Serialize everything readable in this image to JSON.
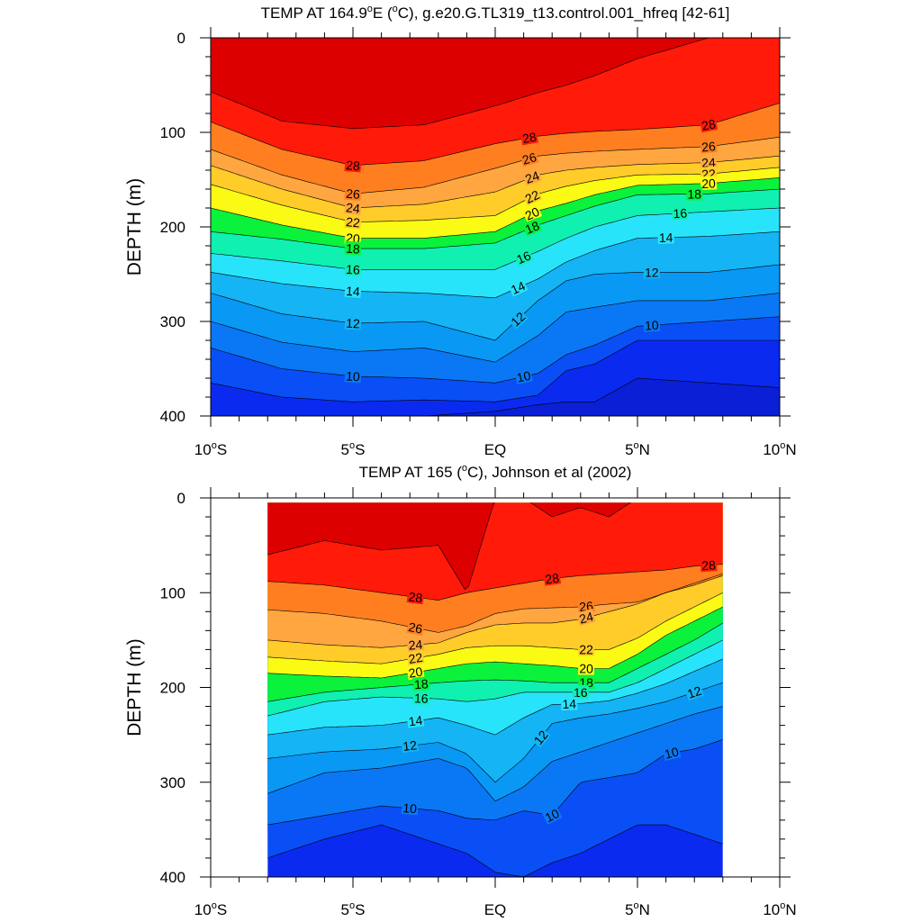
{
  "chart_data": [
    {
      "type": "contour",
      "title": "TEMP AT 164.9°E (°C), g.e20.G.TL319_t13.control.001_hfreq [42-61]",
      "title_parts": {
        "pre": "TEMP AT 164.9",
        "sup1": "o",
        "mid": "E (",
        "sup2": "o",
        "post": "C), g.e20.G.TL319_t13.control.001_hfreq [42-61]"
      },
      "ylabel": "DEPTH (m)",
      "xlim": [
        -10,
        10
      ],
      "ylim": [
        400,
        0
      ],
      "x_ticks": [
        -10,
        -5,
        0,
        5,
        10
      ],
      "x_tick_labels": [
        {
          "num": "10",
          "sup": "o",
          "suf": "S"
        },
        {
          "num": "5",
          "sup": "o",
          "suf": "S"
        },
        {
          "num": "EQ",
          "sup": "",
          "suf": ""
        },
        {
          "num": "5",
          "sup": "o",
          "suf": "N"
        },
        {
          "num": "10",
          "sup": "o",
          "suf": "N"
        }
      ],
      "y_ticks": [
        0,
        100,
        200,
        300,
        400
      ],
      "contour_interval": 1,
      "data_extent": {
        "x": [
          -10,
          10
        ],
        "y": [
          0,
          400
        ]
      },
      "x": [
        -10,
        -7.5,
        -5,
        -2.5,
        0,
        1.5,
        2.5,
        3.5,
        5,
        7.5,
        10
      ],
      "isotherms": [
        {
          "t": 29,
          "depth": [
            57,
            88,
            96,
            92,
            72,
            58,
            50,
            40,
            22,
            0,
            0
          ]
        },
        {
          "t": 28,
          "depth": [
            89,
            118,
            135,
            130,
            112,
            104,
            101,
            99,
            97,
            92,
            69
          ]
        },
        {
          "t": 26,
          "depth": [
            118,
            145,
            165,
            158,
            138,
            125,
            122,
            120,
            118,
            115,
            105
          ]
        },
        {
          "t": 24,
          "depth": [
            135,
            160,
            180,
            176,
            163,
            145,
            140,
            137,
            134,
            132,
            125
          ]
        },
        {
          "t": 22,
          "depth": [
            155,
            177,
            195,
            193,
            188,
            165,
            157,
            151,
            145,
            144,
            137
          ]
        },
        {
          "t": 20,
          "depth": [
            180,
            198,
            212,
            212,
            205,
            183,
            175,
            166,
            156,
            154,
            148
          ]
        },
        {
          "t": 18,
          "depth": [
            205,
            213,
            223,
            223,
            217,
            198,
            188,
            178,
            166,
            165,
            160
          ]
        },
        {
          "t": 16,
          "depth": [
            228,
            236,
            245,
            245,
            245,
            226,
            212,
            200,
            188,
            184,
            180
          ]
        },
        {
          "t": 14,
          "depth": [
            248,
            260,
            268,
            270,
            275,
            255,
            237,
            225,
            212,
            210,
            205
          ]
        },
        {
          "t": 12,
          "depth": [
            270,
            292,
            302,
            300,
            320,
            278,
            257,
            250,
            248,
            248,
            240
          ]
        },
        {
          "t": 11,
          "depth": [
            300,
            322,
            332,
            328,
            343,
            315,
            290,
            285,
            278,
            278,
            270
          ]
        },
        {
          "t": 10,
          "depth": [
            328,
            350,
            358,
            360,
            365,
            355,
            335,
            325,
            305,
            300,
            295
          ]
        },
        {
          "t": 9,
          "depth": [
            365,
            380,
            385,
            383,
            385,
            378,
            352,
            345,
            320,
            320,
            320
          ]
        },
        {
          "t": 8,
          "depth": [
            400,
            400,
            400,
            400,
            395,
            388,
            385,
            385,
            360,
            365,
            370
          ]
        }
      ],
      "labels": [
        {
          "t": 28,
          "x": [
            -5,
            1.2,
            7.5
          ]
        },
        {
          "t": 26,
          "x": [
            -5,
            1.2,
            7.5
          ]
        },
        {
          "t": 24,
          "x": [
            -5,
            1.3,
            7.5
          ]
        },
        {
          "t": 22,
          "x": [
            -5,
            1.3,
            7.5
          ]
        },
        {
          "t": 20,
          "x": [
            -5,
            1.3,
            7.5
          ]
        },
        {
          "t": 18,
          "x": [
            -5,
            1.3,
            7.0
          ]
        },
        {
          "t": 16,
          "x": [
            -5,
            1.0,
            6.5
          ]
        },
        {
          "t": 14,
          "x": [
            -5,
            0.8,
            6.0
          ]
        },
        {
          "t": 12,
          "x": [
            -5,
            0.8,
            5.5
          ]
        },
        {
          "t": 10,
          "x": [
            -5,
            1.0,
            5.5
          ]
        }
      ]
    },
    {
      "type": "contour",
      "title": "TEMP AT 165 (°C), Johnson et al (2002)",
      "title_parts": {
        "pre": "TEMP AT 165 (",
        "sup1": "o",
        "mid": "",
        "sup2": "",
        "post": "C), Johnson et al (2002)"
      },
      "ylabel": "DEPTH (m)",
      "xlim": [
        -10,
        10
      ],
      "ylim": [
        400,
        0
      ],
      "x_ticks": [
        -10,
        -5,
        0,
        5,
        10
      ],
      "x_tick_labels": [
        {
          "num": "10",
          "sup": "o",
          "suf": "S"
        },
        {
          "num": "5",
          "sup": "o",
          "suf": "S"
        },
        {
          "num": "EQ",
          "sup": "",
          "suf": ""
        },
        {
          "num": "5",
          "sup": "o",
          "suf": "N"
        },
        {
          "num": "10",
          "sup": "o",
          "suf": "N"
        }
      ],
      "y_ticks": [
        0,
        100,
        200,
        300,
        400
      ],
      "contour_interval": 1,
      "data_extent": {
        "x": [
          -8,
          8
        ],
        "y": [
          5,
          400
        ]
      },
      "x": [
        -8,
        -6,
        -4,
        -2,
        -1,
        0,
        1,
        2,
        3,
        4,
        5,
        6,
        7,
        8
      ],
      "isotherms": [
        {
          "t": 29,
          "depth": [
            60,
            45,
            55,
            50,
            100,
            0,
            0,
            20,
            10,
            20,
            0,
            0,
            0,
            0
          ]
        },
        {
          "t": 28,
          "depth": [
            88,
            92,
            100,
            108,
            100,
            95,
            90,
            85,
            82,
            80,
            78,
            76,
            72,
            70
          ]
        },
        {
          "t": 26,
          "depth": [
            118,
            122,
            130,
            142,
            135,
            122,
            117,
            116,
            115,
            112,
            110,
            100,
            92,
            82
          ]
        },
        {
          "t": 24,
          "depth": [
            150,
            155,
            158,
            153,
            142,
            134,
            132,
            132,
            128,
            120,
            112,
            100,
            90,
            80
          ]
        },
        {
          "t": 22,
          "depth": [
            168,
            172,
            175,
            165,
            158,
            156,
            156,
            158,
            160,
            160,
            148,
            130,
            115,
            100
          ]
        },
        {
          "t": 20,
          "depth": [
            185,
            188,
            190,
            180,
            175,
            173,
            175,
            177,
            180,
            180,
            165,
            145,
            130,
            115
          ]
        },
        {
          "t": 18,
          "depth": [
            215,
            205,
            200,
            195,
            193,
            192,
            193,
            195,
            195,
            195,
            180,
            165,
            150,
            132
          ]
        },
        {
          "t": 16,
          "depth": [
            230,
            215,
            210,
            212,
            215,
            212,
            205,
            205,
            205,
            205,
            195,
            180,
            165,
            150
          ]
        },
        {
          "t": 14,
          "depth": [
            250,
            242,
            240,
            232,
            240,
            250,
            232,
            218,
            217,
            214,
            206,
            196,
            183,
            170
          ]
        },
        {
          "t": 12,
          "depth": [
            275,
            268,
            265,
            258,
            270,
            300,
            275,
            238,
            232,
            228,
            222,
            215,
            205,
            195
          ]
        },
        {
          "t": 11,
          "depth": [
            312,
            290,
            285,
            275,
            285,
            320,
            305,
            278,
            268,
            258,
            248,
            238,
            228,
            220
          ]
        },
        {
          "t": 10,
          "depth": [
            345,
            335,
            325,
            330,
            338,
            340,
            330,
            335,
            300,
            295,
            290,
            270,
            265,
            255
          ]
        },
        {
          "t": 9,
          "depth": [
            380,
            360,
            345,
            365,
            375,
            395,
            400,
            385,
            375,
            360,
            345,
            345,
            355,
            365
          ]
        }
      ],
      "labels": [
        {
          "t": 28,
          "x": [
            -2.8,
            2.0,
            7.5
          ]
        },
        {
          "t": 26,
          "x": [
            -2.8,
            3.2
          ]
        },
        {
          "t": 24,
          "x": [
            -2.8,
            3.2
          ]
        },
        {
          "t": 22,
          "x": [
            -2.8,
            3.2
          ]
        },
        {
          "t": 20,
          "x": [
            -2.8,
            3.2
          ]
        },
        {
          "t": 18,
          "x": [
            -2.6,
            3.2
          ]
        },
        {
          "t": 16,
          "x": [
            -2.6,
            3.0
          ]
        },
        {
          "t": 14,
          "x": [
            -2.8,
            2.6
          ]
        },
        {
          "t": 12,
          "x": [
            -3.0,
            1.6,
            7.0
          ]
        },
        {
          "t": 10,
          "x": [
            -3.0,
            2.0,
            6.2
          ]
        }
      ]
    }
  ]
}
